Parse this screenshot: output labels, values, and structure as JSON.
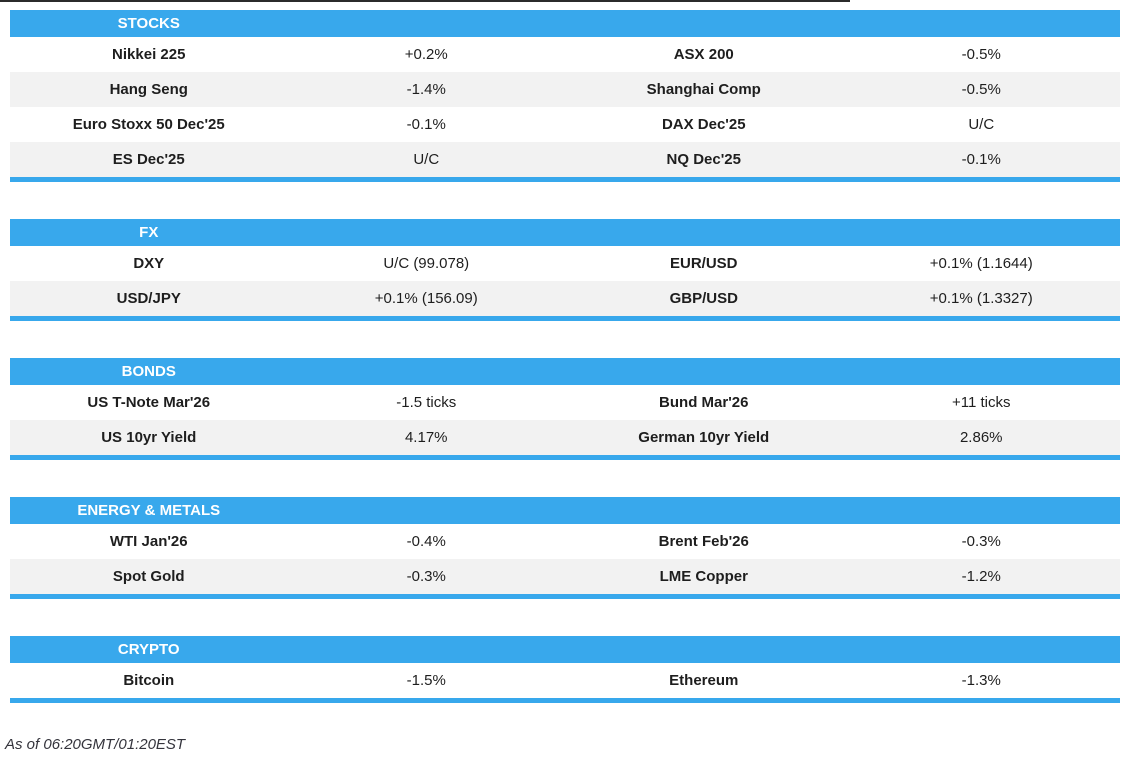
{
  "colors": {
    "accent": "#38a8ec",
    "row_alt": "#f2f2f2",
    "text": "#1e1e1e",
    "header_text": "#ffffff",
    "top_line": "#2b2b2b"
  },
  "sections": [
    {
      "title": "STOCKS",
      "rows": [
        [
          "Nikkei 225",
          "+0.2%",
          "ASX 200",
          "-0.5%"
        ],
        [
          "Hang Seng",
          "-1.4%",
          "Shanghai Comp",
          "-0.5%"
        ],
        [
          "Euro Stoxx 50 Dec'25",
          "-0.1%",
          "DAX Dec'25",
          "U/C"
        ],
        [
          "ES Dec'25",
          "U/C",
          "NQ Dec'25",
          "-0.1%"
        ]
      ]
    },
    {
      "title": "FX",
      "rows": [
        [
          "DXY",
          "U/C (99.078)",
          "EUR/USD",
          "+0.1% (1.1644)"
        ],
        [
          "USD/JPY",
          "+0.1% (156.09)",
          "GBP/USD",
          "+0.1% (1.3327)"
        ]
      ]
    },
    {
      "title": "BONDS",
      "rows": [
        [
          "US T-Note Mar'26",
          "-1.5 ticks",
          "Bund Mar'26",
          "+11 ticks"
        ],
        [
          "US 10yr Yield",
          "4.17%",
          "German 10yr Yield",
          "2.86%"
        ]
      ]
    },
    {
      "title": "ENERGY & METALS",
      "rows": [
        [
          "WTI Jan'26",
          "-0.4%",
          "Brent Feb'26",
          "-0.3%"
        ],
        [
          "Spot Gold",
          "-0.3%",
          "LME Copper",
          "-1.2%"
        ]
      ]
    },
    {
      "title": "CRYPTO",
      "rows": [
        [
          "Bitcoin",
          "-1.5%",
          "Ethereum",
          "-1.3%"
        ]
      ]
    }
  ],
  "footer": {
    "as_of": "As of 06:20GMT/01:20EST"
  }
}
